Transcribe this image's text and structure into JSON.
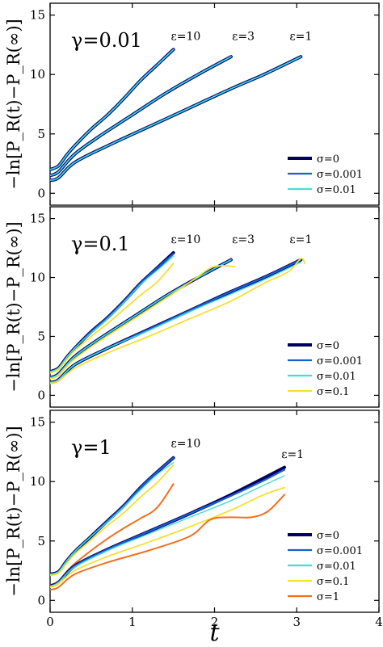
{
  "chart_data": [
    {
      "type": "line",
      "panel_label": "γ=0.01",
      "ylabel": "−ln[P_R(t)−P_R(∞)]",
      "xlim": [
        0,
        4
      ],
      "ylim": [
        -1,
        16
      ],
      "xticks": [
        "0",
        "1",
        "2",
        "3",
        "4"
      ],
      "yticks": [
        "0",
        "5",
        "10",
        "15"
      ],
      "legend_position": "right",
      "annotations": [
        {
          "text": "ε=10",
          "x": 1.65,
          "y": 12.9
        },
        {
          "text": "ε=3",
          "x": 2.35,
          "y": 12.9
        },
        {
          "text": "ε=1",
          "x": 3.05,
          "y": 12.9
        }
      ],
      "series": [
        {
          "name": "σ=0",
          "group": "ε=10",
          "color": "#000060",
          "width": 4,
          "x": [
            0,
            0.1,
            0.2,
            0.3,
            0.5,
            0.7,
            0.9,
            1.1,
            1.3,
            1.5
          ],
          "y": [
            2.0,
            2.3,
            3.2,
            4.0,
            5.4,
            6.6,
            8.0,
            9.5,
            10.8,
            12.1
          ]
        },
        {
          "name": "σ=0.001",
          "group": "ε=10",
          "color": "#1a5fd0",
          "width": 2.2,
          "x": [
            0,
            0.1,
            0.2,
            0.3,
            0.5,
            0.7,
            0.9,
            1.1,
            1.3,
            1.5
          ],
          "y": [
            2.0,
            2.3,
            3.2,
            4.0,
            5.4,
            6.6,
            8.0,
            9.5,
            10.8,
            12.1
          ]
        },
        {
          "name": "σ=0.01",
          "group": "ε=10",
          "color": "#40e0d0",
          "width": 1.4,
          "x": [
            0,
            0.1,
            0.2,
            0.3,
            0.5,
            0.7,
            0.9,
            1.1,
            1.3,
            1.5
          ],
          "y": [
            2.0,
            2.3,
            3.2,
            4.0,
            5.4,
            6.6,
            8.0,
            9.5,
            10.8,
            12.1
          ]
        },
        {
          "name": "σ=0",
          "group": "ε=3",
          "color": "#000060",
          "width": 4,
          "x": [
            0,
            0.1,
            0.3,
            0.6,
            1.0,
            1.4,
            1.8,
            2.2
          ],
          "y": [
            1.5,
            1.8,
            3.3,
            4.8,
            6.6,
            8.4,
            10.0,
            11.5
          ]
        },
        {
          "name": "σ=0.001",
          "group": "ε=3",
          "color": "#1a5fd0",
          "width": 2.2,
          "x": [
            0,
            0.1,
            0.3,
            0.6,
            1.0,
            1.4,
            1.8,
            2.2
          ],
          "y": [
            1.5,
            1.8,
            3.3,
            4.8,
            6.6,
            8.4,
            10.0,
            11.5
          ]
        },
        {
          "name": "σ=0.01",
          "group": "ε=3",
          "color": "#40e0d0",
          "width": 1.4,
          "x": [
            0,
            0.1,
            0.3,
            0.6,
            1.0,
            1.4,
            1.8,
            2.2
          ],
          "y": [
            1.5,
            1.8,
            3.3,
            4.8,
            6.6,
            8.4,
            10.0,
            11.5
          ]
        },
        {
          "name": "σ=0",
          "group": "ε=1",
          "color": "#000060",
          "width": 4,
          "x": [
            0,
            0.1,
            0.3,
            0.7,
            1.2,
            1.7,
            2.2,
            2.6,
            3.05
          ],
          "y": [
            1.1,
            1.3,
            2.6,
            4.0,
            5.6,
            7.2,
            8.8,
            10.0,
            11.5
          ]
        },
        {
          "name": "σ=0.001",
          "group": "ε=1",
          "color": "#1a5fd0",
          "width": 2.2,
          "x": [
            0,
            0.1,
            0.3,
            0.7,
            1.2,
            1.7,
            2.2,
            2.6,
            3.05
          ],
          "y": [
            1.1,
            1.3,
            2.6,
            4.0,
            5.6,
            7.2,
            8.8,
            10.0,
            11.5
          ]
        },
        {
          "name": "σ=0.01",
          "group": "ε=1",
          "color": "#40e0d0",
          "width": 1.4,
          "x": [
            0,
            0.1,
            0.3,
            0.7,
            1.2,
            1.7,
            2.2,
            2.6,
            3.05
          ],
          "y": [
            1.1,
            1.3,
            2.6,
            4.0,
            5.6,
            7.2,
            8.8,
            10.0,
            11.5
          ]
        }
      ],
      "legend": [
        {
          "name": "σ=0",
          "color": "#000060",
          "width": 4
        },
        {
          "name": "σ=0.001",
          "color": "#1a5fd0",
          "width": 2.2
        },
        {
          "name": "σ=0.01",
          "color": "#40e0d0",
          "width": 2.2
        }
      ]
    },
    {
      "type": "line",
      "panel_label": "γ=0.1",
      "ylabel": "−ln[P_R(t)−P_R(∞)]",
      "xlim": [
        0,
        4
      ],
      "ylim": [
        -1,
        16
      ],
      "xticks": [
        "0",
        "1",
        "2",
        "3",
        "4"
      ],
      "yticks": [
        "0",
        "5",
        "10",
        "15"
      ],
      "legend_position": "right",
      "annotations": [
        {
          "text": "ε=10",
          "x": 1.65,
          "y": 12.9
        },
        {
          "text": "ε=3",
          "x": 2.35,
          "y": 12.9
        },
        {
          "text": "ε=1",
          "x": 3.05,
          "y": 12.9
        }
      ],
      "series": [
        {
          "name": "σ=0",
          "group": "ε=10",
          "color": "#000060",
          "width": 4,
          "x": [
            0,
            0.1,
            0.2,
            0.3,
            0.5,
            0.7,
            0.9,
            1.1,
            1.3,
            1.5
          ],
          "y": [
            2.0,
            2.3,
            3.2,
            4.0,
            5.4,
            6.6,
            8.0,
            9.5,
            10.8,
            12.1
          ]
        },
        {
          "name": "σ=0.001",
          "group": "ε=10",
          "color": "#1a5fd0",
          "width": 2.2,
          "x": [
            0,
            0.1,
            0.2,
            0.3,
            0.5,
            0.7,
            0.9,
            1.1,
            1.3,
            1.5
          ],
          "y": [
            2.0,
            2.3,
            3.2,
            4.0,
            5.4,
            6.6,
            8.0,
            9.5,
            10.8,
            12.0
          ]
        },
        {
          "name": "σ=0.01",
          "group": "ε=10",
          "color": "#40e0d0",
          "width": 1.4,
          "x": [
            0,
            0.1,
            0.2,
            0.3,
            0.5,
            0.7,
            0.9,
            1.1,
            1.3,
            1.5
          ],
          "y": [
            2.0,
            2.3,
            3.2,
            4.0,
            5.3,
            6.5,
            7.9,
            9.4,
            10.6,
            11.8
          ]
        },
        {
          "name": "σ=0.1",
          "group": "ε=10",
          "color": "#f5e030",
          "width": 1.8,
          "x": [
            0,
            0.1,
            0.2,
            0.3,
            0.5,
            0.7,
            0.9,
            1.1,
            1.3,
            1.5
          ],
          "y": [
            1.9,
            2.2,
            3.0,
            3.8,
            5.0,
            6.1,
            7.3,
            8.5,
            9.6,
            11.2
          ]
        },
        {
          "name": "σ=0",
          "group": "ε=3",
          "color": "#000060",
          "width": 4,
          "x": [
            0,
            0.1,
            0.3,
            0.6,
            1.0,
            1.4,
            1.8,
            2.2
          ],
          "y": [
            1.5,
            1.8,
            3.3,
            4.8,
            6.6,
            8.4,
            10.0,
            11.5
          ]
        },
        {
          "name": "σ=0.001",
          "group": "ε=3",
          "color": "#1a5fd0",
          "width": 2.2,
          "x": [
            0,
            0.1,
            0.3,
            0.6,
            1.0,
            1.4,
            1.8,
            2.2
          ],
          "y": [
            1.5,
            1.8,
            3.3,
            4.8,
            6.6,
            8.4,
            10.0,
            11.5
          ]
        },
        {
          "name": "σ=0.01",
          "group": "ε=3",
          "color": "#40e0d0",
          "width": 1.4,
          "x": [
            0,
            0.1,
            0.3,
            0.6,
            1.0,
            1.4,
            1.8,
            2.2
          ],
          "y": [
            1.5,
            1.8,
            3.3,
            4.8,
            6.6,
            8.4,
            10.0,
            11.5
          ]
        },
        {
          "name": "σ=0.1",
          "group": "ε=3",
          "color": "#f5e030",
          "width": 1.8,
          "x": [
            0,
            0.1,
            0.3,
            0.6,
            1.0,
            1.4,
            1.7,
            1.95,
            2.1,
            2.25
          ],
          "y": [
            1.4,
            1.7,
            3.1,
            4.6,
            6.4,
            8.2,
            9.6,
            10.8,
            11.0,
            10.9
          ]
        },
        {
          "name": "σ=0",
          "group": "ε=1",
          "color": "#000060",
          "width": 4,
          "x": [
            0,
            0.1,
            0.3,
            0.7,
            1.2,
            1.7,
            2.2,
            2.6,
            3.05
          ],
          "y": [
            1.1,
            1.3,
            2.6,
            4.0,
            5.6,
            7.2,
            8.8,
            10.0,
            11.5
          ]
        },
        {
          "name": "σ=0.001",
          "group": "ε=1",
          "color": "#1a5fd0",
          "width": 2.2,
          "x": [
            0,
            0.1,
            0.3,
            0.7,
            1.2,
            1.7,
            2.2,
            2.6,
            3.05
          ],
          "y": [
            1.1,
            1.3,
            2.6,
            4.0,
            5.6,
            7.2,
            8.8,
            10.0,
            11.5
          ]
        },
        {
          "name": "σ=0.01",
          "group": "ε=1",
          "color": "#40e0d0",
          "width": 1.4,
          "x": [
            0,
            0.1,
            0.3,
            0.7,
            1.2,
            1.7,
            2.2,
            2.6,
            3.05
          ],
          "y": [
            1.1,
            1.3,
            2.6,
            4.0,
            5.5,
            7.1,
            8.6,
            9.8,
            11.3
          ]
        },
        {
          "name": "σ=0.1",
          "group": "ε=1",
          "color": "#f5e030",
          "width": 1.8,
          "x": [
            0,
            0.1,
            0.3,
            0.7,
            1.2,
            1.7,
            2.2,
            2.6,
            2.9,
            3.05,
            3.1
          ],
          "y": [
            1.0,
            1.2,
            2.3,
            3.6,
            5.0,
            6.5,
            8.0,
            9.5,
            10.5,
            11.6,
            11.2
          ]
        }
      ],
      "legend": [
        {
          "name": "σ=0",
          "color": "#000060",
          "width": 4
        },
        {
          "name": "σ=0.001",
          "color": "#1a5fd0",
          "width": 2.2
        },
        {
          "name": "σ=0.01",
          "color": "#40e0d0",
          "width": 2.2
        },
        {
          "name": "σ=0.1",
          "color": "#f5e030",
          "width": 2.2
        }
      ]
    },
    {
      "type": "line",
      "panel_label": "γ=1",
      "ylabel": "−ln[P_R(t)−P_R(∞)]",
      "xlabel": "t",
      "xlim": [
        0,
        4
      ],
      "ylim": [
        -1,
        16
      ],
      "xticks": [
        "0",
        "1",
        "2",
        "3",
        "4"
      ],
      "yticks": [
        "0",
        "5",
        "10",
        "15"
      ],
      "legend_position": "right",
      "annotations": [
        {
          "text": "ε=10",
          "x": 1.65,
          "y": 12.9
        },
        {
          "text": "ε=1",
          "x": 2.95,
          "y": 12.0
        }
      ],
      "series": [
        {
          "name": "σ=0",
          "group": "ε=10",
          "color": "#000060",
          "width": 4,
          "x": [
            0,
            0.1,
            0.2,
            0.3,
            0.5,
            0.7,
            0.9,
            1.1,
            1.3,
            1.5
          ],
          "y": [
            2.2,
            2.4,
            3.3,
            4.1,
            5.4,
            6.7,
            8.0,
            9.5,
            10.8,
            12.0
          ]
        },
        {
          "name": "σ=0.001",
          "group": "ε=10",
          "color": "#1a5fd0",
          "width": 2.2,
          "x": [
            0,
            0.1,
            0.2,
            0.3,
            0.5,
            0.7,
            0.9,
            1.1,
            1.3,
            1.5
          ],
          "y": [
            2.2,
            2.4,
            3.3,
            4.1,
            5.4,
            6.7,
            8.0,
            9.5,
            10.8,
            12.0
          ]
        },
        {
          "name": "σ=0.01",
          "group": "ε=10",
          "color": "#40e0d0",
          "width": 1.4,
          "x": [
            0,
            0.1,
            0.2,
            0.3,
            0.5,
            0.7,
            0.9,
            1.1,
            1.3,
            1.5
          ],
          "y": [
            2.2,
            2.4,
            3.3,
            4.1,
            5.4,
            6.6,
            7.9,
            9.3,
            10.6,
            11.6
          ]
        },
        {
          "name": "σ=0.1",
          "group": "ε=10",
          "color": "#f5e030",
          "width": 1.8,
          "x": [
            0,
            0.1,
            0.2,
            0.3,
            0.5,
            0.7,
            0.9,
            1.1,
            1.3,
            1.5
          ],
          "y": [
            2.1,
            2.3,
            3.1,
            3.9,
            5.1,
            6.3,
            7.4,
            8.7,
            9.9,
            11.4
          ]
        },
        {
          "name": "σ=1",
          "group": "ε=10",
          "color": "#f07020",
          "width": 2,
          "x": [
            0,
            0.1,
            0.2,
            0.3,
            0.5,
            0.7,
            0.9,
            1.1,
            1.3,
            1.5
          ],
          "y": [
            1.3,
            1.6,
            2.4,
            3.1,
            4.2,
            5.2,
            6.1,
            6.9,
            7.8,
            9.8
          ]
        },
        {
          "name": "σ=0",
          "group": "ε=1",
          "color": "#000060",
          "width": 4,
          "x": [
            0,
            0.1,
            0.3,
            0.7,
            1.2,
            1.7,
            2.2,
            2.6,
            2.85
          ],
          "y": [
            1.2,
            1.5,
            2.9,
            4.3,
            5.8,
            7.3,
            8.9,
            10.3,
            11.2
          ]
        },
        {
          "name": "σ=0.001",
          "group": "ε=1",
          "color": "#1a5fd0",
          "width": 2.2,
          "x": [
            0,
            0.1,
            0.3,
            0.7,
            1.2,
            1.7,
            2.2,
            2.6,
            2.85
          ],
          "y": [
            1.2,
            1.5,
            2.9,
            4.3,
            5.8,
            7.3,
            8.8,
            10.1,
            11.0
          ]
        },
        {
          "name": "σ=0.01",
          "group": "ε=1",
          "color": "#40e0d0",
          "width": 1.4,
          "x": [
            0,
            0.1,
            0.3,
            0.7,
            1.2,
            1.7,
            2.2,
            2.6,
            2.85
          ],
          "y": [
            1.2,
            1.5,
            2.8,
            4.2,
            5.6,
            7.0,
            8.4,
            9.7,
            10.5
          ]
        },
        {
          "name": "σ=0.1",
          "group": "ε=1",
          "color": "#f5e030",
          "width": 1.8,
          "x": [
            0,
            0.1,
            0.3,
            0.7,
            1.2,
            1.7,
            2.2,
            2.6,
            2.85
          ],
          "y": [
            1.1,
            1.4,
            2.5,
            3.7,
            4.9,
            6.2,
            7.6,
            8.9,
            9.5
          ]
        },
        {
          "name": "σ=1",
          "group": "ε=1",
          "color": "#f07020",
          "width": 2,
          "x": [
            0,
            0.1,
            0.3,
            0.7,
            1.2,
            1.7,
            1.95,
            2.2,
            2.45,
            2.65,
            2.85
          ],
          "y": [
            0.9,
            1.1,
            2.2,
            3.2,
            4.2,
            5.4,
            6.8,
            7.0,
            7.0,
            7.5,
            8.9
          ]
        }
      ],
      "legend": [
        {
          "name": "σ=0",
          "color": "#000060",
          "width": 4
        },
        {
          "name": "σ=0.001",
          "color": "#1a5fd0",
          "width": 2.2
        },
        {
          "name": "σ=0.01",
          "color": "#40e0d0",
          "width": 2.2
        },
        {
          "name": "σ=0.1",
          "color": "#f5e030",
          "width": 2.2
        },
        {
          "name": "σ=1",
          "color": "#f07020",
          "width": 2.2
        }
      ]
    }
  ]
}
